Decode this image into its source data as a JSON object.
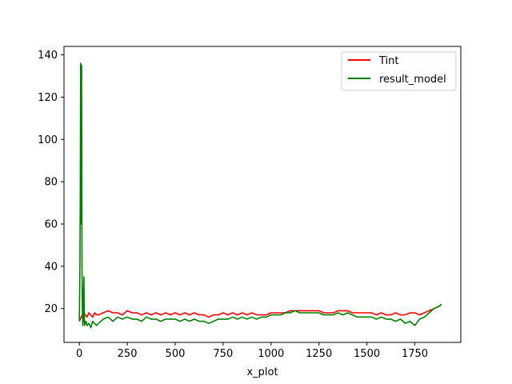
{
  "chart_data": {
    "type": "line",
    "xlabel": "x_plot",
    "ylabel": "",
    "xlim": [
      -80,
      1990
    ],
    "ylim": [
      4,
      144
    ],
    "xticks": [
      0,
      250,
      500,
      750,
      1000,
      1250,
      1500,
      1750
    ],
    "xtick_labels": [
      "0",
      "250",
      "500",
      "750",
      "1000",
      "1250",
      "1500",
      "1750"
    ],
    "yticks": [
      20,
      40,
      60,
      80,
      100,
      120,
      140
    ],
    "ytick_labels": [
      "20",
      "40",
      "60",
      "80",
      "100",
      "120",
      "140"
    ],
    "legend_position": "top-right",
    "series": [
      {
        "name": "Tint",
        "color": "#ff0000",
        "x": [
          0,
          5,
          10,
          15,
          20,
          25,
          30,
          40,
          50,
          60,
          70,
          80,
          90,
          100,
          125,
          150,
          175,
          200,
          225,
          250,
          275,
          300,
          325,
          350,
          375,
          400,
          425,
          450,
          475,
          500,
          525,
          550,
          575,
          600,
          625,
          650,
          675,
          700,
          725,
          750,
          775,
          800,
          825,
          850,
          875,
          900,
          925,
          950,
          975,
          1000,
          1025,
          1050,
          1075,
          1100,
          1125,
          1150,
          1175,
          1200,
          1225,
          1250,
          1275,
          1300,
          1325,
          1350,
          1375,
          1400,
          1425,
          1450,
          1475,
          1500,
          1525,
          1550,
          1575,
          1600,
          1625,
          1650,
          1675,
          1700,
          1725,
          1750,
          1775,
          1800,
          1825,
          1850,
          1875,
          1890
        ],
        "y": [
          14,
          15,
          16,
          17,
          16,
          18,
          17,
          16,
          18,
          17,
          16,
          18,
          17,
          17,
          18,
          19,
          18,
          18,
          17,
          19,
          18,
          18,
          17,
          18,
          17,
          18,
          17,
          18,
          17,
          18,
          17,
          18,
          17,
          18,
          17,
          17,
          16,
          17,
          17,
          18,
          17,
          18,
          17,
          18,
          17,
          18,
          17,
          17,
          17,
          18,
          18,
          18,
          18,
          19,
          19,
          19,
          19,
          19,
          19,
          19,
          18,
          18,
          18,
          19,
          19,
          19,
          18,
          18,
          18,
          18,
          18,
          17,
          18,
          17,
          17,
          18,
          17,
          17,
          18,
          18,
          17,
          18,
          19,
          20,
          21,
          22
        ]
      },
      {
        "name": "result_model",
        "color": "#008000",
        "x": [
          0,
          3,
          5,
          7,
          9,
          10,
          12,
          14,
          16,
          18,
          20,
          22,
          24,
          26,
          28,
          30,
          35,
          40,
          50,
          60,
          70,
          80,
          90,
          100,
          125,
          150,
          175,
          200,
          225,
          250,
          275,
          300,
          325,
          350,
          375,
          400,
          425,
          450,
          475,
          500,
          525,
          550,
          575,
          600,
          625,
          650,
          675,
          700,
          725,
          750,
          775,
          800,
          825,
          850,
          875,
          900,
          925,
          950,
          975,
          1000,
          1025,
          1050,
          1075,
          1100,
          1125,
          1150,
          1175,
          1200,
          1225,
          1250,
          1275,
          1300,
          1325,
          1350,
          1375,
          1400,
          1425,
          1450,
          1475,
          1500,
          1525,
          1550,
          1575,
          1600,
          1625,
          1650,
          1675,
          1700,
          1725,
          1750,
          1775,
          1800,
          1825,
          1850,
          1875,
          1890
        ],
        "y": [
          14,
          40,
          80,
          136,
          100,
          60,
          135,
          40,
          20,
          12,
          14,
          28,
          35,
          15,
          12,
          13,
          14,
          12,
          13,
          11,
          14,
          13,
          12,
          13,
          15,
          16,
          14,
          16,
          15,
          16,
          15,
          15,
          14,
          16,
          15,
          15,
          14,
          15,
          15,
          15,
          14,
          15,
          14,
          15,
          14,
          14,
          13,
          14,
          15,
          15,
          15,
          16,
          15,
          16,
          15,
          16,
          15,
          16,
          16,
          17,
          17,
          17,
          18,
          18,
          19,
          18,
          18,
          18,
          18,
          18,
          17,
          17,
          17,
          18,
          17,
          18,
          17,
          16,
          16,
          16,
          16,
          15,
          16,
          15,
          15,
          14,
          15,
          13,
          14,
          12,
          15,
          16,
          18,
          20,
          21,
          22
        ]
      }
    ]
  }
}
